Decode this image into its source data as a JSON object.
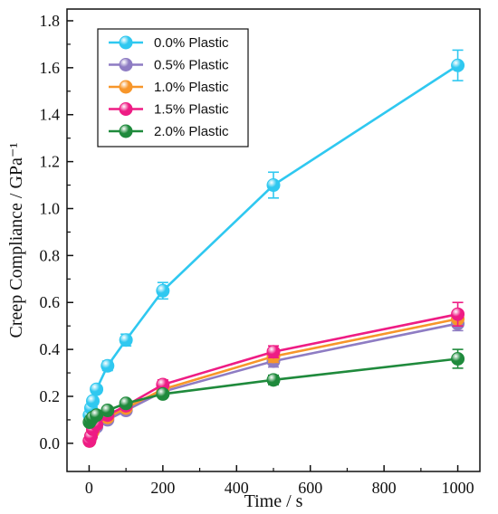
{
  "chart_data": {
    "type": "line",
    "xlabel": "Time / s",
    "ylabel": "Creep Compliance / GPa⁻¹",
    "xlim": [
      -60,
      1060
    ],
    "ylim": [
      -0.12,
      1.85
    ],
    "x_ticks": [
      "0",
      "200",
      "400",
      "600",
      "800",
      "1000"
    ],
    "y_ticks": [
      "0.0",
      "0.2",
      "0.4",
      "0.6",
      "0.8",
      "1.0",
      "1.2",
      "1.4",
      "1.6",
      "1.8"
    ],
    "legend_position": "top-left",
    "grid": false,
    "x": [
      1,
      5,
      10,
      20,
      50,
      100,
      200,
      500,
      1000
    ],
    "series": [
      {
        "name": "0.0% Plastic",
        "color": "#2fc8f0",
        "values": [
          0.12,
          0.15,
          0.18,
          0.23,
          0.33,
          0.44,
          0.65,
          1.1,
          1.61
        ],
        "errors": [
          0.01,
          0.01,
          0.015,
          0.015,
          0.02,
          0.025,
          0.035,
          0.055,
          0.065
        ]
      },
      {
        "name": "0.5% Plastic",
        "color": "#8e7cc3",
        "values": [
          0.01,
          0.03,
          0.05,
          0.07,
          0.1,
          0.14,
          0.22,
          0.35,
          0.51
        ],
        "errors": [
          0.005,
          0.005,
          0.01,
          0.01,
          0.01,
          0.015,
          0.02,
          0.025,
          0.03
        ]
      },
      {
        "name": "1.0% Plastic",
        "color": "#f7962a",
        "values": [
          0.01,
          0.03,
          0.05,
          0.08,
          0.11,
          0.15,
          0.23,
          0.37,
          0.53
        ],
        "errors": [
          0.005,
          0.005,
          0.01,
          0.01,
          0.01,
          0.015,
          0.02,
          0.025,
          0.03
        ]
      },
      {
        "name": "1.5% Plastic",
        "color": "#ee1c84",
        "values": [
          0.01,
          0.03,
          0.06,
          0.08,
          0.12,
          0.16,
          0.25,
          0.39,
          0.55
        ],
        "errors": [
          0.005,
          0.005,
          0.01,
          0.01,
          0.01,
          0.015,
          0.02,
          0.025,
          0.05
        ]
      },
      {
        "name": "2.0% Plastic",
        "color": "#1f8a3c",
        "values": [
          0.09,
          0.1,
          0.11,
          0.12,
          0.14,
          0.17,
          0.21,
          0.27,
          0.36
        ],
        "errors": [
          0.005,
          0.005,
          0.01,
          0.01,
          0.01,
          0.01,
          0.015,
          0.02,
          0.04
        ]
      }
    ]
  }
}
